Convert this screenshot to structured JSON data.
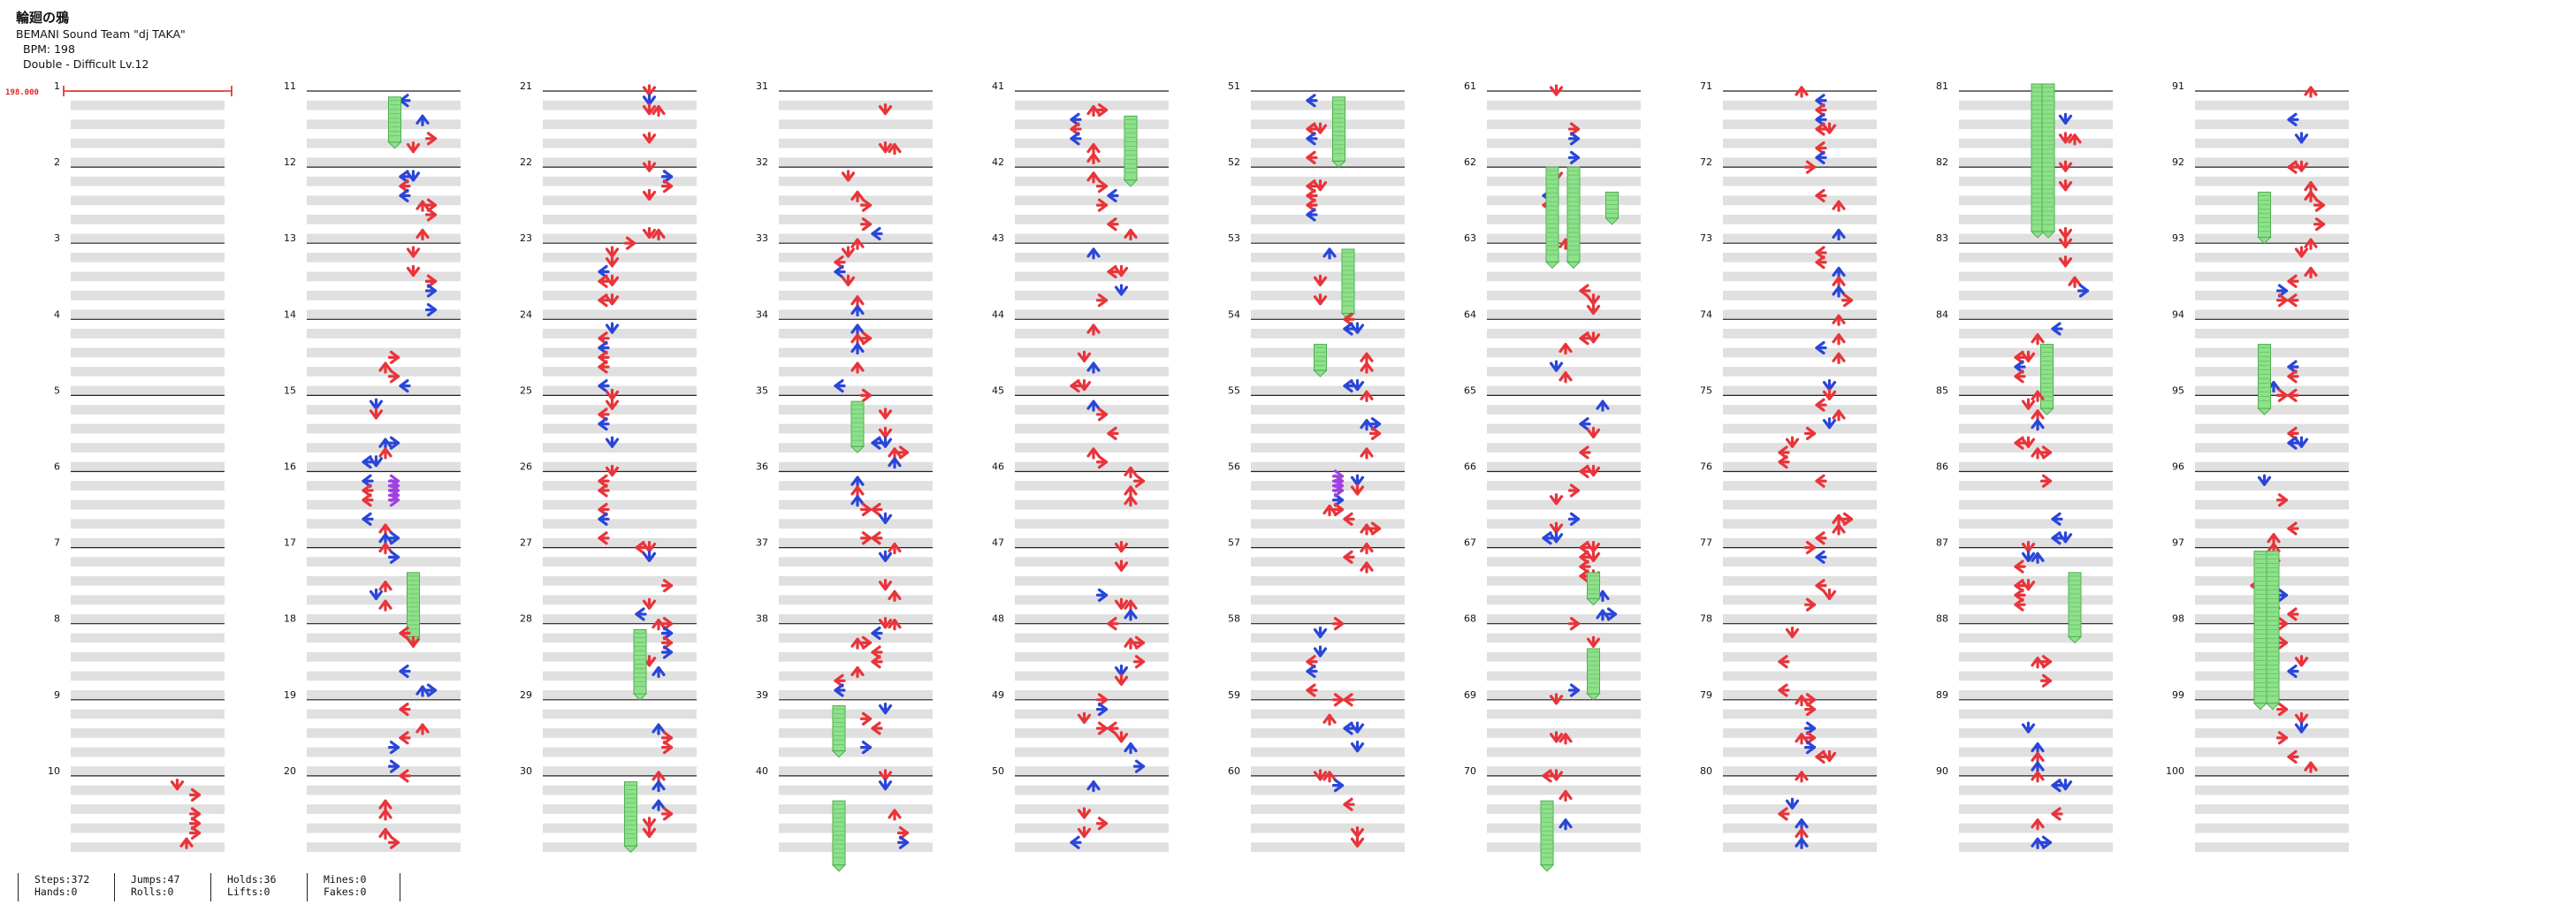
{
  "song": {
    "title": "輪廻の鴉",
    "artist": "BEMANI Sound Team \"dj TAKA\"",
    "bpm_label": "BPM: 198",
    "difficulty_label": "Double - Difficult  Lv.12"
  },
  "bpm_marker": "198.000",
  "measure_numbers": [
    "1",
    "2",
    "3",
    "4",
    "5",
    "6",
    "7",
    "8",
    "9",
    "10",
    "11",
    "12",
    "13",
    "14",
    "15",
    "16",
    "17",
    "18",
    "19",
    "20",
    "21",
    "22",
    "23",
    "24",
    "25",
    "26",
    "27",
    "28",
    "29",
    "30",
    "31",
    "32",
    "33",
    "34",
    "35",
    "36",
    "37",
    "38",
    "39",
    "40",
    "41",
    "42",
    "43",
    "44",
    "45",
    "46",
    "47",
    "48",
    "49",
    "50",
    "51",
    "52",
    "53",
    "54",
    "55",
    "56",
    "57",
    "58",
    "59",
    "60",
    "61",
    "62",
    "63",
    "64",
    "65",
    "66",
    "67",
    "68",
    "69",
    "70",
    "71",
    "72",
    "73",
    "74",
    "75",
    "76",
    "77",
    "78",
    "79",
    "80",
    "81",
    "82",
    "83",
    "84",
    "85",
    "86",
    "87",
    "88",
    "89",
    "90",
    "91",
    "92",
    "93",
    "94",
    "95",
    "96",
    "97",
    "98",
    "99",
    "100"
  ],
  "colors": {
    "quarter": "#e8343a",
    "eighth": "#2a46d8",
    "sixteenth": "#a040e0",
    "hold": "#8ee08a",
    "lane_shade": "#e0e0e0",
    "bpm": "#e82020"
  },
  "stats": {
    "steps": "Steps:372",
    "hands": "Hands:0",
    "jumps": "Jumps:47",
    "rolls": "Rolls:0",
    "holds": "Holds:36",
    "lifts": "Lifts:0",
    "mines": "Mines:0",
    "fakes": "Fakes:0"
  }
}
